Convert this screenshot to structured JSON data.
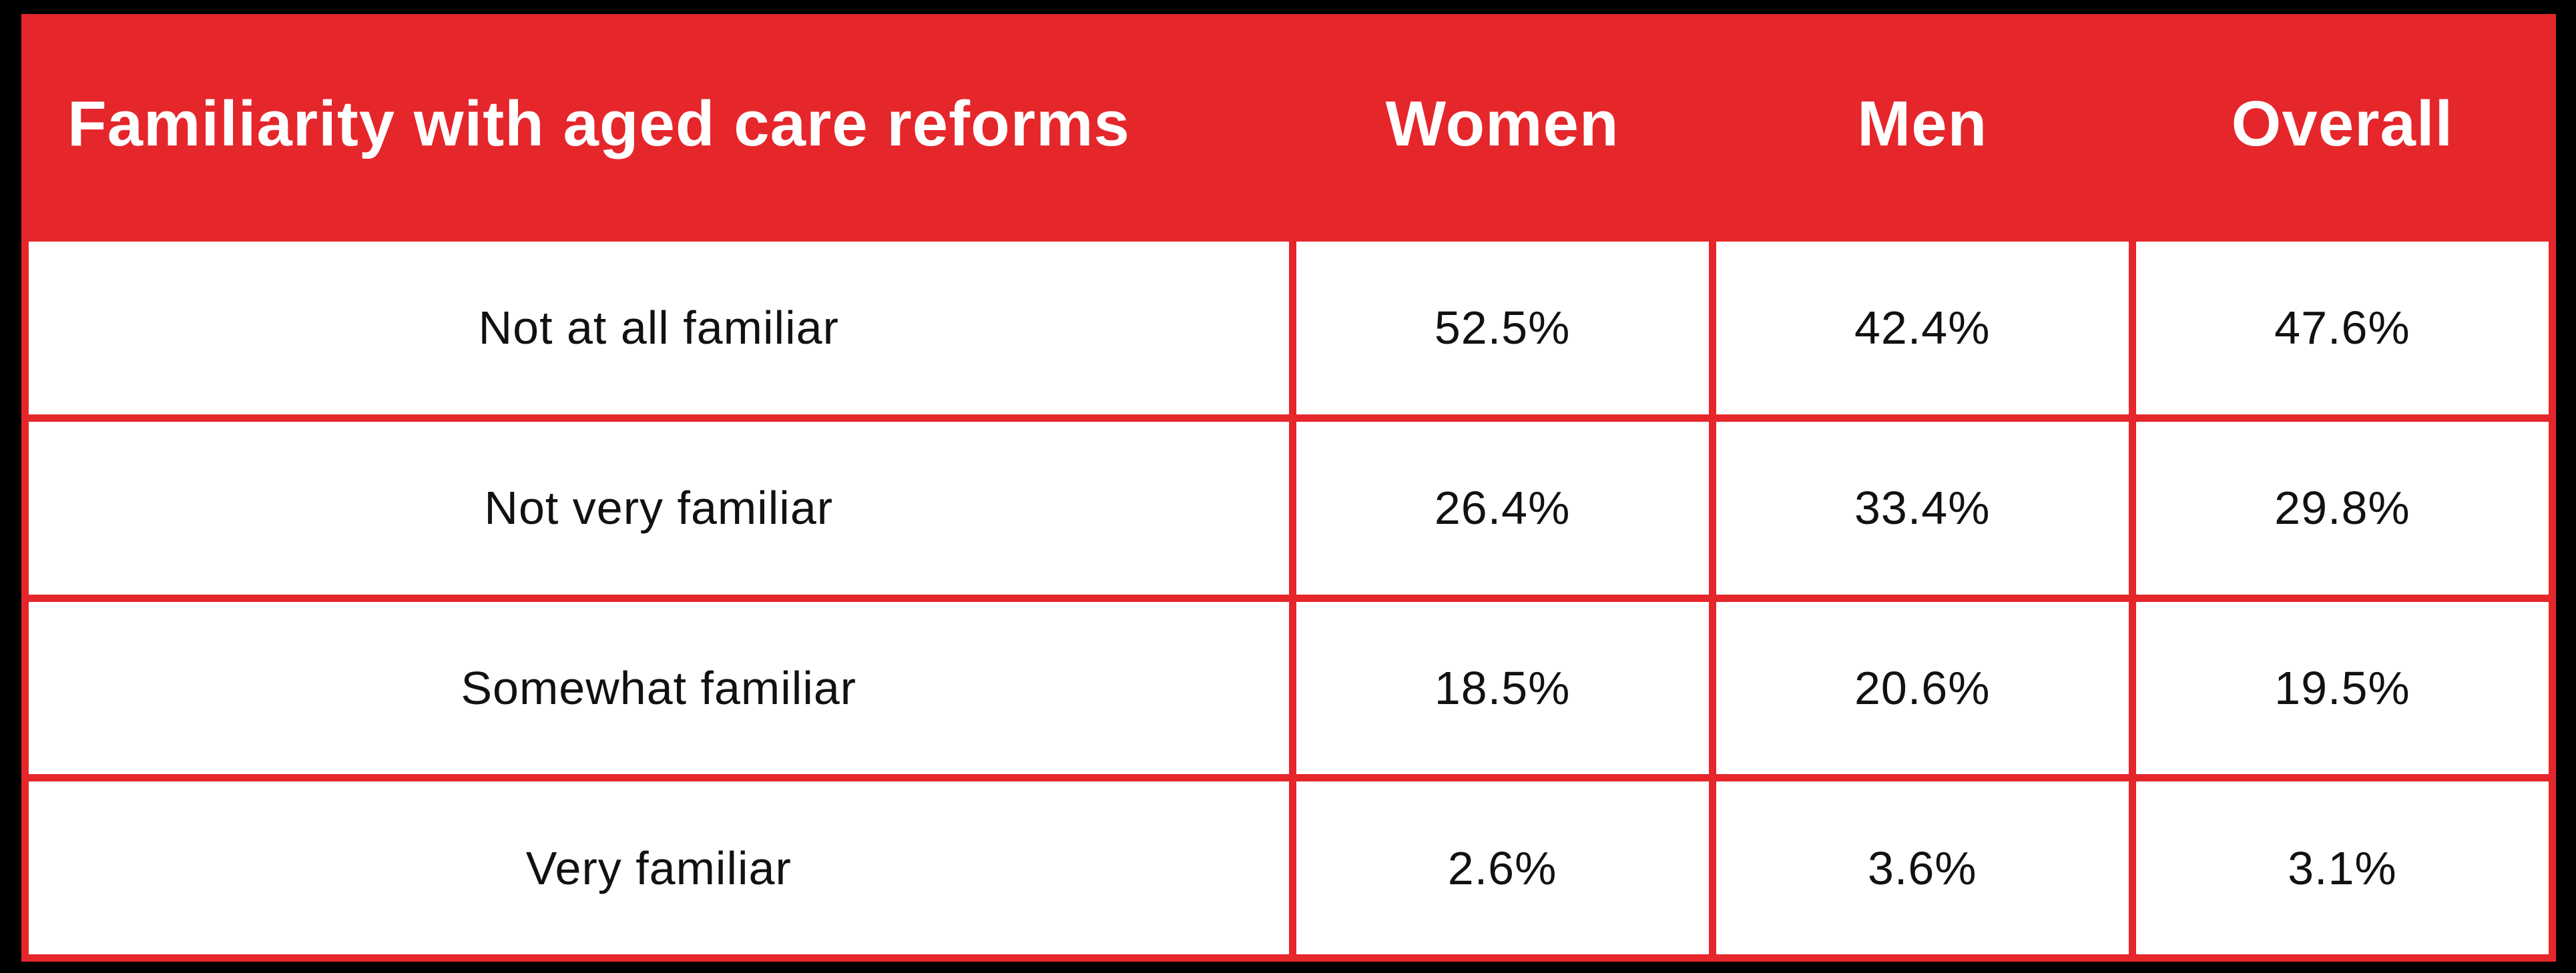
{
  "colors": {
    "accent_red": "#E5262B",
    "outer_background": "#000000",
    "cell_background": "#FFFFFF",
    "header_text": "#FFFFFF",
    "body_text": "#111111"
  },
  "chart_data": {
    "type": "table",
    "title": "Familiarity with aged care reforms",
    "columns": [
      "Familiarity with aged care reforms",
      "Women",
      "Men",
      "Overall"
    ],
    "categories": [
      "Not at all familiar",
      "Not very familiar",
      "Somewhat familiar",
      "Very familiar"
    ],
    "series": [
      {
        "name": "Women",
        "values": [
          52.5,
          26.4,
          18.5,
          2.6
        ]
      },
      {
        "name": "Men",
        "values": [
          42.4,
          33.4,
          20.6,
          3.6
        ]
      },
      {
        "name": "Overall",
        "values": [
          47.6,
          29.8,
          19.5,
          3.1
        ]
      }
    ],
    "unit": "%",
    "rows": [
      [
        "Not at all familiar",
        "52.5%",
        "42.4%",
        "47.6%"
      ],
      [
        "Not very familiar",
        "26.4%",
        "33.4%",
        "29.8%"
      ],
      [
        "Somewhat familiar",
        "18.5%",
        "20.6%",
        "19.5%"
      ],
      [
        "Very familiar",
        "2.6%",
        "3.6%",
        "3.1%"
      ]
    ]
  }
}
